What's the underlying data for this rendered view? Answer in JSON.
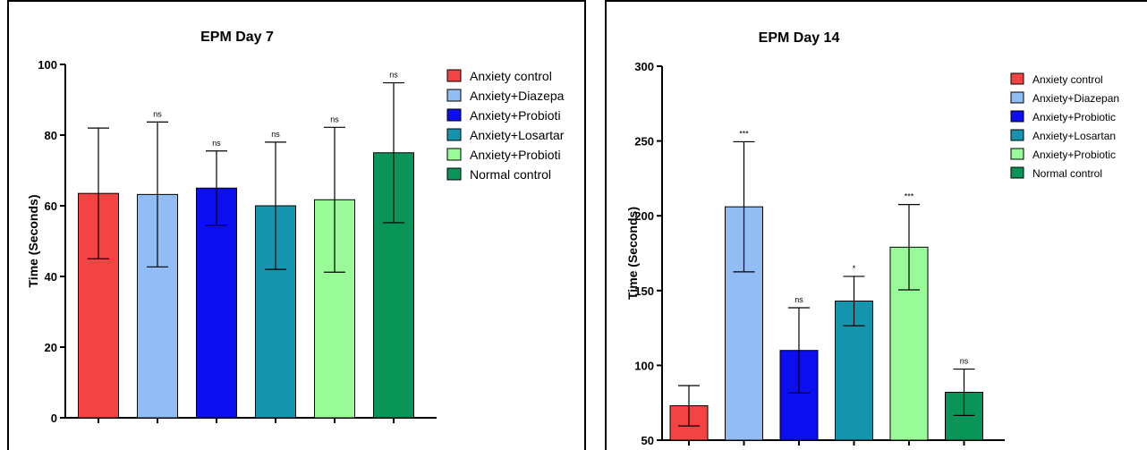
{
  "chart_data": [
    {
      "type": "bar",
      "title": "EPM Day 7",
      "ylabel": "Time (Seconds)",
      "xlabel": "",
      "ylim": [
        0,
        100
      ],
      "yticks": [
        0,
        20,
        40,
        60,
        80,
        100
      ],
      "categories": [
        "Anxiety control",
        "Anxiety+Diazepa",
        "Anxiety+Probioti",
        "Anxiety+Losartar",
        "Anxiety+Probioti",
        "Normal control"
      ],
      "values": [
        63.5,
        63.2,
        65.0,
        60.0,
        61.7,
        75.0
      ],
      "errors": [
        18.5,
        20.5,
        10.5,
        18.0,
        20.5,
        19.8
      ],
      "significance": [
        "",
        "ns",
        "ns",
        "ns",
        "ns",
        "ns"
      ],
      "colors": [
        "#f44343",
        "#92bdf4",
        "#0c0ef0",
        "#1495ad",
        "#98fb98",
        "#0a9558"
      ],
      "legend_position": "right",
      "grid": false
    },
    {
      "type": "bar",
      "title": "EPM Day 14",
      "ylabel": "Time (Seconds)",
      "xlabel": "",
      "ylim": [
        50,
        300
      ],
      "yticks": [
        50,
        100,
        150,
        200,
        250,
        300
      ],
      "categories": [
        "Anxiety control",
        "Anxiety+Diazepan",
        "Anxiety+Probiotic",
        "Anxiety+Losartan",
        "Anxiety+Probiotic",
        "Normal control"
      ],
      "values": [
        73,
        206,
        110,
        143,
        179,
        82
      ],
      "errors": [
        13.5,
        43.5,
        28.5,
        16.5,
        28.5,
        15.5
      ],
      "significance": [
        "",
        "***",
        "ns",
        "*",
        "***",
        "ns"
      ],
      "colors": [
        "#f44343",
        "#92bdf4",
        "#0c0ef0",
        "#1495ad",
        "#98fb98",
        "#0a9558"
      ],
      "legend_position": "right",
      "grid": false
    }
  ]
}
